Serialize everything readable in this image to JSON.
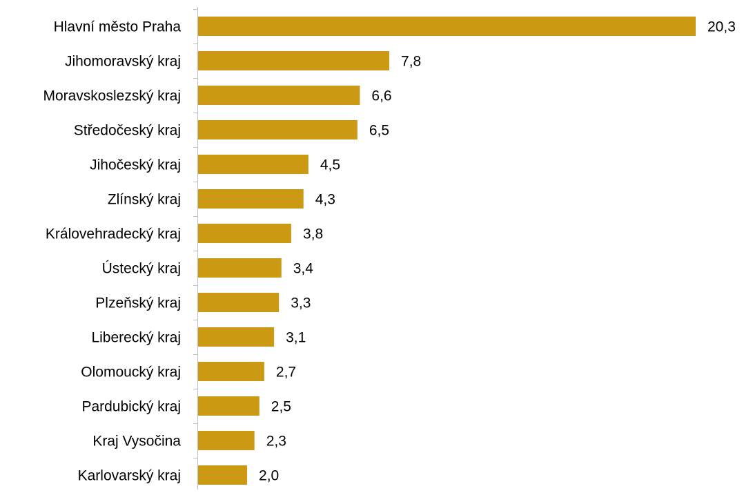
{
  "chart_data": {
    "type": "bar",
    "orientation": "horizontal",
    "color": "#cc9914",
    "categories": [
      "Hlavní město Praha",
      "Jihomoravský kraj",
      "Moravskoslezský kraj",
      "Středočeský kraj",
      "Jihočeský kraj",
      "Zlínský kraj",
      "Královehradecký kraj",
      "Ústecký kraj",
      "Plzeňský kraj",
      "Liberecký kraj",
      "Olomoucký kraj",
      "Pardubický kraj",
      "Kraj Vysočina",
      "Karlovarský kraj"
    ],
    "values": [
      20.3,
      7.8,
      6.6,
      6.5,
      4.5,
      4.3,
      3.8,
      3.4,
      3.3,
      3.1,
      2.7,
      2.5,
      2.3,
      2.0
    ],
    "value_labels": [
      "20,3",
      "7,8",
      "6,6",
      "6,5",
      "4,5",
      "4,3",
      "3,8",
      "3,4",
      "3,3",
      "3,1",
      "2,7",
      "2,5",
      "2,3",
      "2,0"
    ]
  }
}
